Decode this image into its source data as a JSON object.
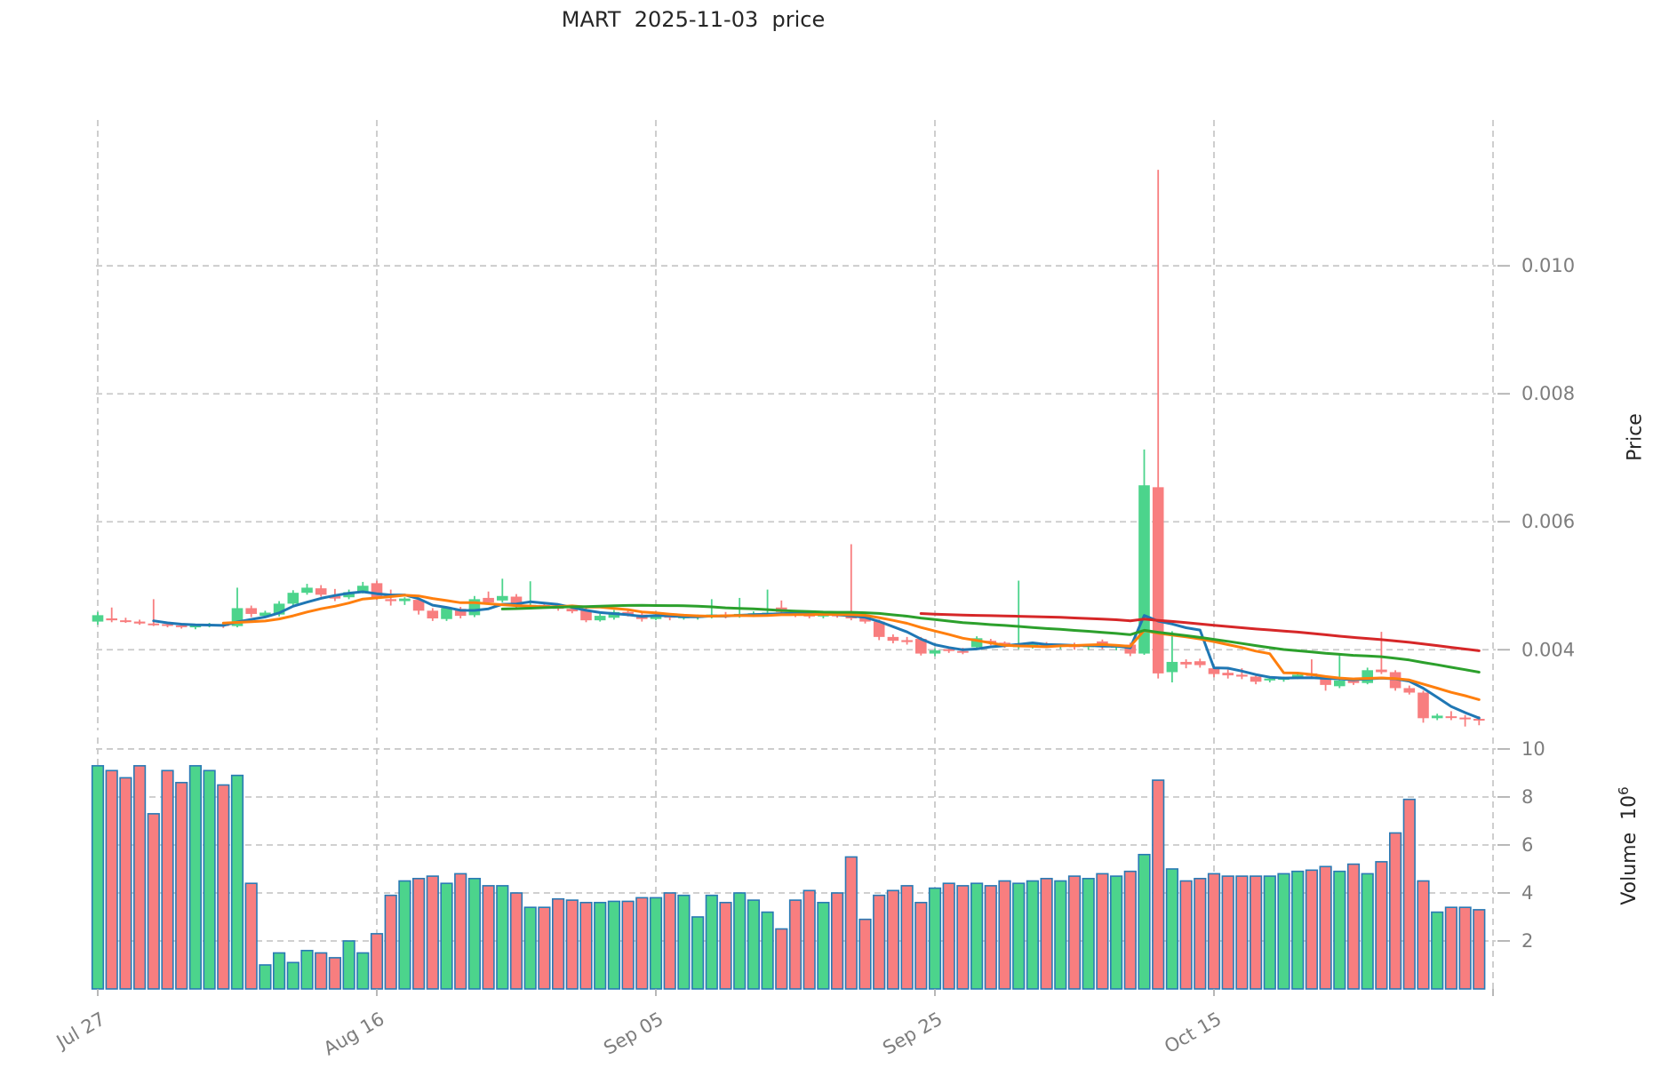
{
  "title": "MART  2025-11-03  price",
  "axes": {
    "price_label": "Price",
    "volume_label": "Volume",
    "volume_unit_base": "10",
    "volume_unit_exp": "6"
  },
  "colors": {
    "up": "#4cd48c",
    "down": "#f87e7f",
    "volume_edge": "#2a7ab5",
    "grid": "#c9c9c9",
    "tick_text": "#7d7d7d",
    "ma_colors": [
      "#1f77b4",
      "#ff7f0e",
      "#2ca02c",
      "#d62728"
    ]
  },
  "chart_data": {
    "type": "candlestick_volume",
    "title": "MART  2025-11-03  price",
    "x_ticks": [
      {
        "day": 0,
        "label": "Jul 27"
      },
      {
        "day": 20,
        "label": "Aug 16"
      },
      {
        "day": 40,
        "label": "Sep 05"
      },
      {
        "day": 60,
        "label": "Sep 25"
      },
      {
        "day": 80,
        "label": "Oct 15"
      },
      {
        "day": 100,
        "label": ""
      }
    ],
    "price_axis": {
      "ticks": [
        0.004,
        0.006,
        0.008,
        0.01
      ],
      "ylim": [
        0.00274,
        0.01228
      ]
    },
    "volume_axis": {
      "ticks": [
        2,
        4,
        6,
        8,
        10
      ],
      "ylim": [
        0,
        10.48
      ],
      "unit": "10^6"
    },
    "moving_averages": [
      {
        "name": "ma5",
        "window": 5,
        "color": "#1f77b4"
      },
      {
        "name": "ma10",
        "window": 10,
        "color": "#ff7f0e"
      },
      {
        "name": "ma30",
        "window": 30,
        "color": "#2ca02c"
      },
      {
        "name": "ma60",
        "window": 60,
        "color": "#d62728"
      }
    ],
    "candles_format": [
      "open",
      "high",
      "low",
      "close",
      "volume_millions"
    ],
    "candles": [
      [
        0.00444,
        0.00459,
        0.00439,
        0.00454,
        9.3
      ],
      [
        0.00449,
        0.00466,
        0.00443,
        0.00446,
        9.1
      ],
      [
        0.00446,
        0.0045,
        0.00442,
        0.00445,
        8.8
      ],
      [
        0.00444,
        0.00447,
        0.00439,
        0.00441,
        9.3
      ],
      [
        0.00441,
        0.00479,
        0.00437,
        0.0044,
        7.3
      ],
      [
        0.0044,
        0.00443,
        0.00435,
        0.00438,
        9.1
      ],
      [
        0.00438,
        0.00441,
        0.00433,
        0.00436,
        8.6
      ],
      [
        0.00435,
        0.0044,
        0.00432,
        0.00439,
        9.3
      ],
      [
        0.00438,
        0.00442,
        0.00435,
        0.0044,
        9.1
      ],
      [
        0.0044,
        0.00443,
        0.00434,
        0.00437,
        8.5
      ],
      [
        0.00437,
        0.00497,
        0.00435,
        0.00465,
        8.9
      ],
      [
        0.00465,
        0.00469,
        0.00451,
        0.00456,
        4.4
      ],
      [
        0.00453,
        0.00461,
        0.0045,
        0.00458,
        1.0
      ],
      [
        0.00455,
        0.00476,
        0.00452,
        0.00472,
        1.5
      ],
      [
        0.00472,
        0.00493,
        0.00469,
        0.00489,
        1.1
      ],
      [
        0.00489,
        0.00503,
        0.00486,
        0.00497,
        1.6
      ],
      [
        0.00496,
        0.00501,
        0.00483,
        0.00486,
        1.5
      ],
      [
        0.00484,
        0.00495,
        0.00476,
        0.0048,
        1.3
      ],
      [
        0.00482,
        0.00494,
        0.00479,
        0.0049,
        2.0
      ],
      [
        0.0049,
        0.00506,
        0.00488,
        0.005,
        1.5
      ],
      [
        0.00504,
        0.00508,
        0.00478,
        0.00482,
        2.3
      ],
      [
        0.00479,
        0.00494,
        0.00469,
        0.00476,
        3.9
      ],
      [
        0.00476,
        0.00482,
        0.0047,
        0.0048,
        4.5
      ],
      [
        0.00478,
        0.00481,
        0.00455,
        0.00461,
        4.6
      ],
      [
        0.00461,
        0.00465,
        0.00445,
        0.00449,
        4.7
      ],
      [
        0.00448,
        0.00467,
        0.00445,
        0.00465,
        4.4
      ],
      [
        0.00464,
        0.00467,
        0.00449,
        0.00453,
        4.8
      ],
      [
        0.00454,
        0.00484,
        0.00451,
        0.00479,
        4.6
      ],
      [
        0.00481,
        0.00491,
        0.00471,
        0.00474,
        4.3
      ],
      [
        0.00477,
        0.00511,
        0.00474,
        0.00484,
        4.3
      ],
      [
        0.00483,
        0.00487,
        0.00464,
        0.00468,
        4.0
      ],
      [
        0.00466,
        0.00507,
        0.00463,
        0.0047,
        3.4
      ],
      [
        0.0047,
        0.00474,
        0.00465,
        0.00468,
        3.4
      ],
      [
        0.00468,
        0.00472,
        0.00461,
        0.00464,
        3.75
      ],
      [
        0.00464,
        0.00467,
        0.00457,
        0.0046,
        3.7
      ],
      [
        0.00462,
        0.00465,
        0.00443,
        0.00446,
        3.6
      ],
      [
        0.00446,
        0.00456,
        0.00444,
        0.00453,
        3.6
      ],
      [
        0.0045,
        0.00462,
        0.00447,
        0.00459,
        3.65
      ],
      [
        0.00459,
        0.00463,
        0.00452,
        0.00455,
        3.65
      ],
      [
        0.00455,
        0.00458,
        0.00444,
        0.00448,
        3.8
      ],
      [
        0.00448,
        0.00456,
        0.00446,
        0.00453,
        3.8
      ],
      [
        0.00453,
        0.00457,
        0.00446,
        0.0045,
        4.0
      ],
      [
        0.0045,
        0.00456,
        0.00447,
        0.00452,
        3.9
      ],
      [
        0.0045,
        0.00455,
        0.00447,
        0.00454,
        3.0
      ],
      [
        0.00452,
        0.00479,
        0.00449,
        0.00455,
        3.9
      ],
      [
        0.00455,
        0.00459,
        0.00449,
        0.00452,
        3.6
      ],
      [
        0.00452,
        0.00481,
        0.0045,
        0.00456,
        4.0
      ],
      [
        0.00454,
        0.0046,
        0.00451,
        0.00457,
        3.7
      ],
      [
        0.00455,
        0.00494,
        0.00452,
        0.00458,
        3.2
      ],
      [
        0.00466,
        0.00477,
        0.00455,
        0.00459,
        2.5
      ],
      [
        0.00459,
        0.00462,
        0.00451,
        0.00455,
        3.7
      ],
      [
        0.00455,
        0.00459,
        0.00449,
        0.00452,
        4.1
      ],
      [
        0.00452,
        0.00458,
        0.00449,
        0.00455,
        3.6
      ],
      [
        0.00455,
        0.00459,
        0.0045,
        0.00453,
        4.0
      ],
      [
        0.00455,
        0.00565,
        0.00446,
        0.00449,
        5.5
      ],
      [
        0.00453,
        0.00456,
        0.00441,
        0.00444,
        2.9
      ],
      [
        0.00444,
        0.00447,
        0.00415,
        0.0042,
        3.9
      ],
      [
        0.0042,
        0.00424,
        0.0041,
        0.00414,
        4.1
      ],
      [
        0.00415,
        0.0042,
        0.00408,
        0.00412,
        4.3
      ],
      [
        0.00417,
        0.0042,
        0.00391,
        0.00394,
        3.6
      ],
      [
        0.00394,
        0.00402,
        0.0039,
        0.00399,
        4.2
      ],
      [
        0.00401,
        0.00404,
        0.00395,
        0.00398,
        4.4
      ],
      [
        0.00398,
        0.00403,
        0.00393,
        0.00397,
        4.3
      ],
      [
        0.00404,
        0.00421,
        0.004,
        0.00418,
        4.4
      ],
      [
        0.00414,
        0.00417,
        0.00407,
        0.00411,
        4.3
      ],
      [
        0.00411,
        0.00413,
        0.00403,
        0.00408,
        4.5
      ],
      [
        0.00404,
        0.00508,
        0.00401,
        0.00408,
        4.4
      ],
      [
        0.00406,
        0.0041,
        0.00402,
        0.00409,
        4.5
      ],
      [
        0.00409,
        0.00412,
        0.00403,
        0.00405,
        4.6
      ],
      [
        0.00405,
        0.00409,
        0.00401,
        0.00408,
        4.5
      ],
      [
        0.00408,
        0.00411,
        0.004,
        0.00404,
        4.7
      ],
      [
        0.00404,
        0.00408,
        0.004,
        0.00407,
        4.6
      ],
      [
        0.00413,
        0.00416,
        0.00401,
        0.00404,
        4.8
      ],
      [
        0.00404,
        0.00407,
        0.00399,
        0.00406,
        4.7
      ],
      [
        0.00408,
        0.00411,
        0.0039,
        0.00394,
        4.9
      ],
      [
        0.00394,
        0.00713,
        0.00392,
        0.00657,
        5.6
      ],
      [
        0.00654,
        0.0115,
        0.00355,
        0.00363,
        8.7
      ],
      [
        0.00365,
        0.00429,
        0.00349,
        0.00381,
        5.0
      ],
      [
        0.00381,
        0.00385,
        0.00371,
        0.00377,
        4.5
      ],
      [
        0.00382,
        0.00386,
        0.00372,
        0.00376,
        4.6
      ],
      [
        0.00371,
        0.00375,
        0.00357,
        0.00362,
        4.8
      ],
      [
        0.00364,
        0.00369,
        0.00355,
        0.0036,
        4.7
      ],
      [
        0.00361,
        0.00371,
        0.00354,
        0.00358,
        4.7
      ],
      [
        0.00358,
        0.00361,
        0.00346,
        0.0035,
        4.7
      ],
      [
        0.00352,
        0.00357,
        0.00349,
        0.00355,
        4.7
      ],
      [
        0.00353,
        0.00358,
        0.0035,
        0.00356,
        4.8
      ],
      [
        0.00357,
        0.00363,
        0.00354,
        0.00361,
        4.9
      ],
      [
        0.00363,
        0.00385,
        0.00356,
        0.00359,
        4.95
      ],
      [
        0.00354,
        0.00357,
        0.00336,
        0.00345,
        5.1
      ],
      [
        0.00343,
        0.00393,
        0.0034,
        0.00352,
        4.9
      ],
      [
        0.00352,
        0.00356,
        0.00345,
        0.00348,
        5.2
      ],
      [
        0.00348,
        0.00372,
        0.00346,
        0.00368,
        4.8
      ],
      [
        0.00369,
        0.00428,
        0.00362,
        0.00365,
        5.3
      ],
      [
        0.00365,
        0.00368,
        0.00336,
        0.0034,
        6.5
      ],
      [
        0.0034,
        0.00344,
        0.0033,
        0.00333,
        7.9
      ],
      [
        0.00333,
        0.00336,
        0.00286,
        0.00293,
        4.5
      ],
      [
        0.00293,
        0.003,
        0.0029,
        0.00297,
        3.2
      ],
      [
        0.00296,
        0.00304,
        0.0029,
        0.00294,
        3.4
      ],
      [
        0.00294,
        0.00298,
        0.0028,
        0.00292,
        3.4
      ],
      [
        0.00292,
        0.00296,
        0.00282,
        0.0029,
        3.3
      ]
    ]
  }
}
